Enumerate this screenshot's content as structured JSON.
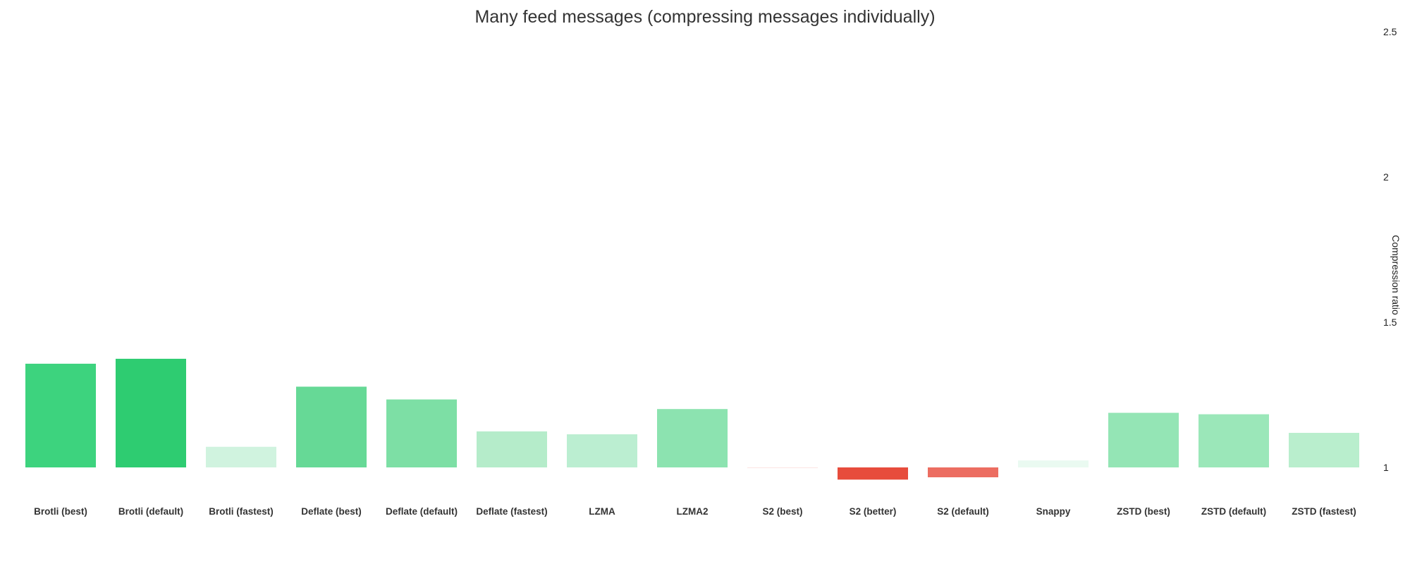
{
  "chart_data": {
    "type": "bar",
    "title": "Many feed messages (compressing messages individually)",
    "xlabel": "",
    "ylabel": "Compression ratio",
    "ylim": [
      1,
      2.5
    ],
    "yticks": [
      1,
      1.5,
      2,
      2.5
    ],
    "y_axis_side": "right",
    "baseline": 1,
    "grid": false,
    "legend": "none",
    "categories": [
      "Brotli (best)",
      "Brotli (default)",
      "Brotli (fastest)",
      "Deflate (best)",
      "Deflate (default)",
      "Deflate (fastest)",
      "LZMA",
      "LZMA2",
      "S2 (best)",
      "S2 (better)",
      "S2 (default)",
      "Snappy",
      "ZSTD (best)",
      "ZSTD (default)",
      "ZSTD (fastest)"
    ],
    "values": [
      1.357,
      1.374,
      1.071,
      1.278,
      1.234,
      1.124,
      1.114,
      1.201,
      0.998,
      0.958,
      0.966,
      1.024,
      1.188,
      1.183,
      1.119
    ],
    "colors": [
      "#3dd37e",
      "#2ecc71",
      "#d0f3df",
      "#66d996",
      "#7ddfa5",
      "#b5ecca",
      "#bbeed1",
      "#8ce3b0",
      "#fbe5e3",
      "#e74c3c",
      "#ec6d61",
      "#eafaf1",
      "#94e5b5",
      "#9be7b9",
      "#b9eecd"
    ]
  }
}
